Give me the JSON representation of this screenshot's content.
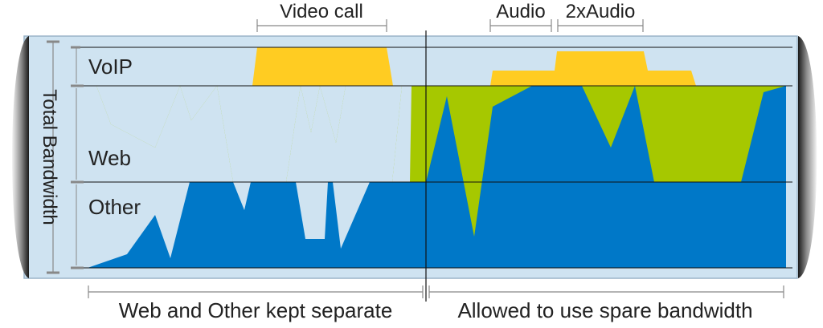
{
  "labels": {
    "video_call": "Video call",
    "audio": "Audio",
    "two_x_audio": "2xAudio",
    "voip": "VoIP",
    "web": "Web",
    "other": "Other",
    "total_bandwidth": "Total Bandwidth",
    "left_caption": "Web and Other kept separate",
    "right_caption": "Allowed to use spare bandwidth"
  },
  "colors": {
    "pipe_fill": "#cfe3f1",
    "pipe_outline": "#9ab4c8",
    "voip": "#ffcc22",
    "web": "#a6c800",
    "other": "#0078c8",
    "line": "#111111",
    "bracket": "#888888"
  }
}
